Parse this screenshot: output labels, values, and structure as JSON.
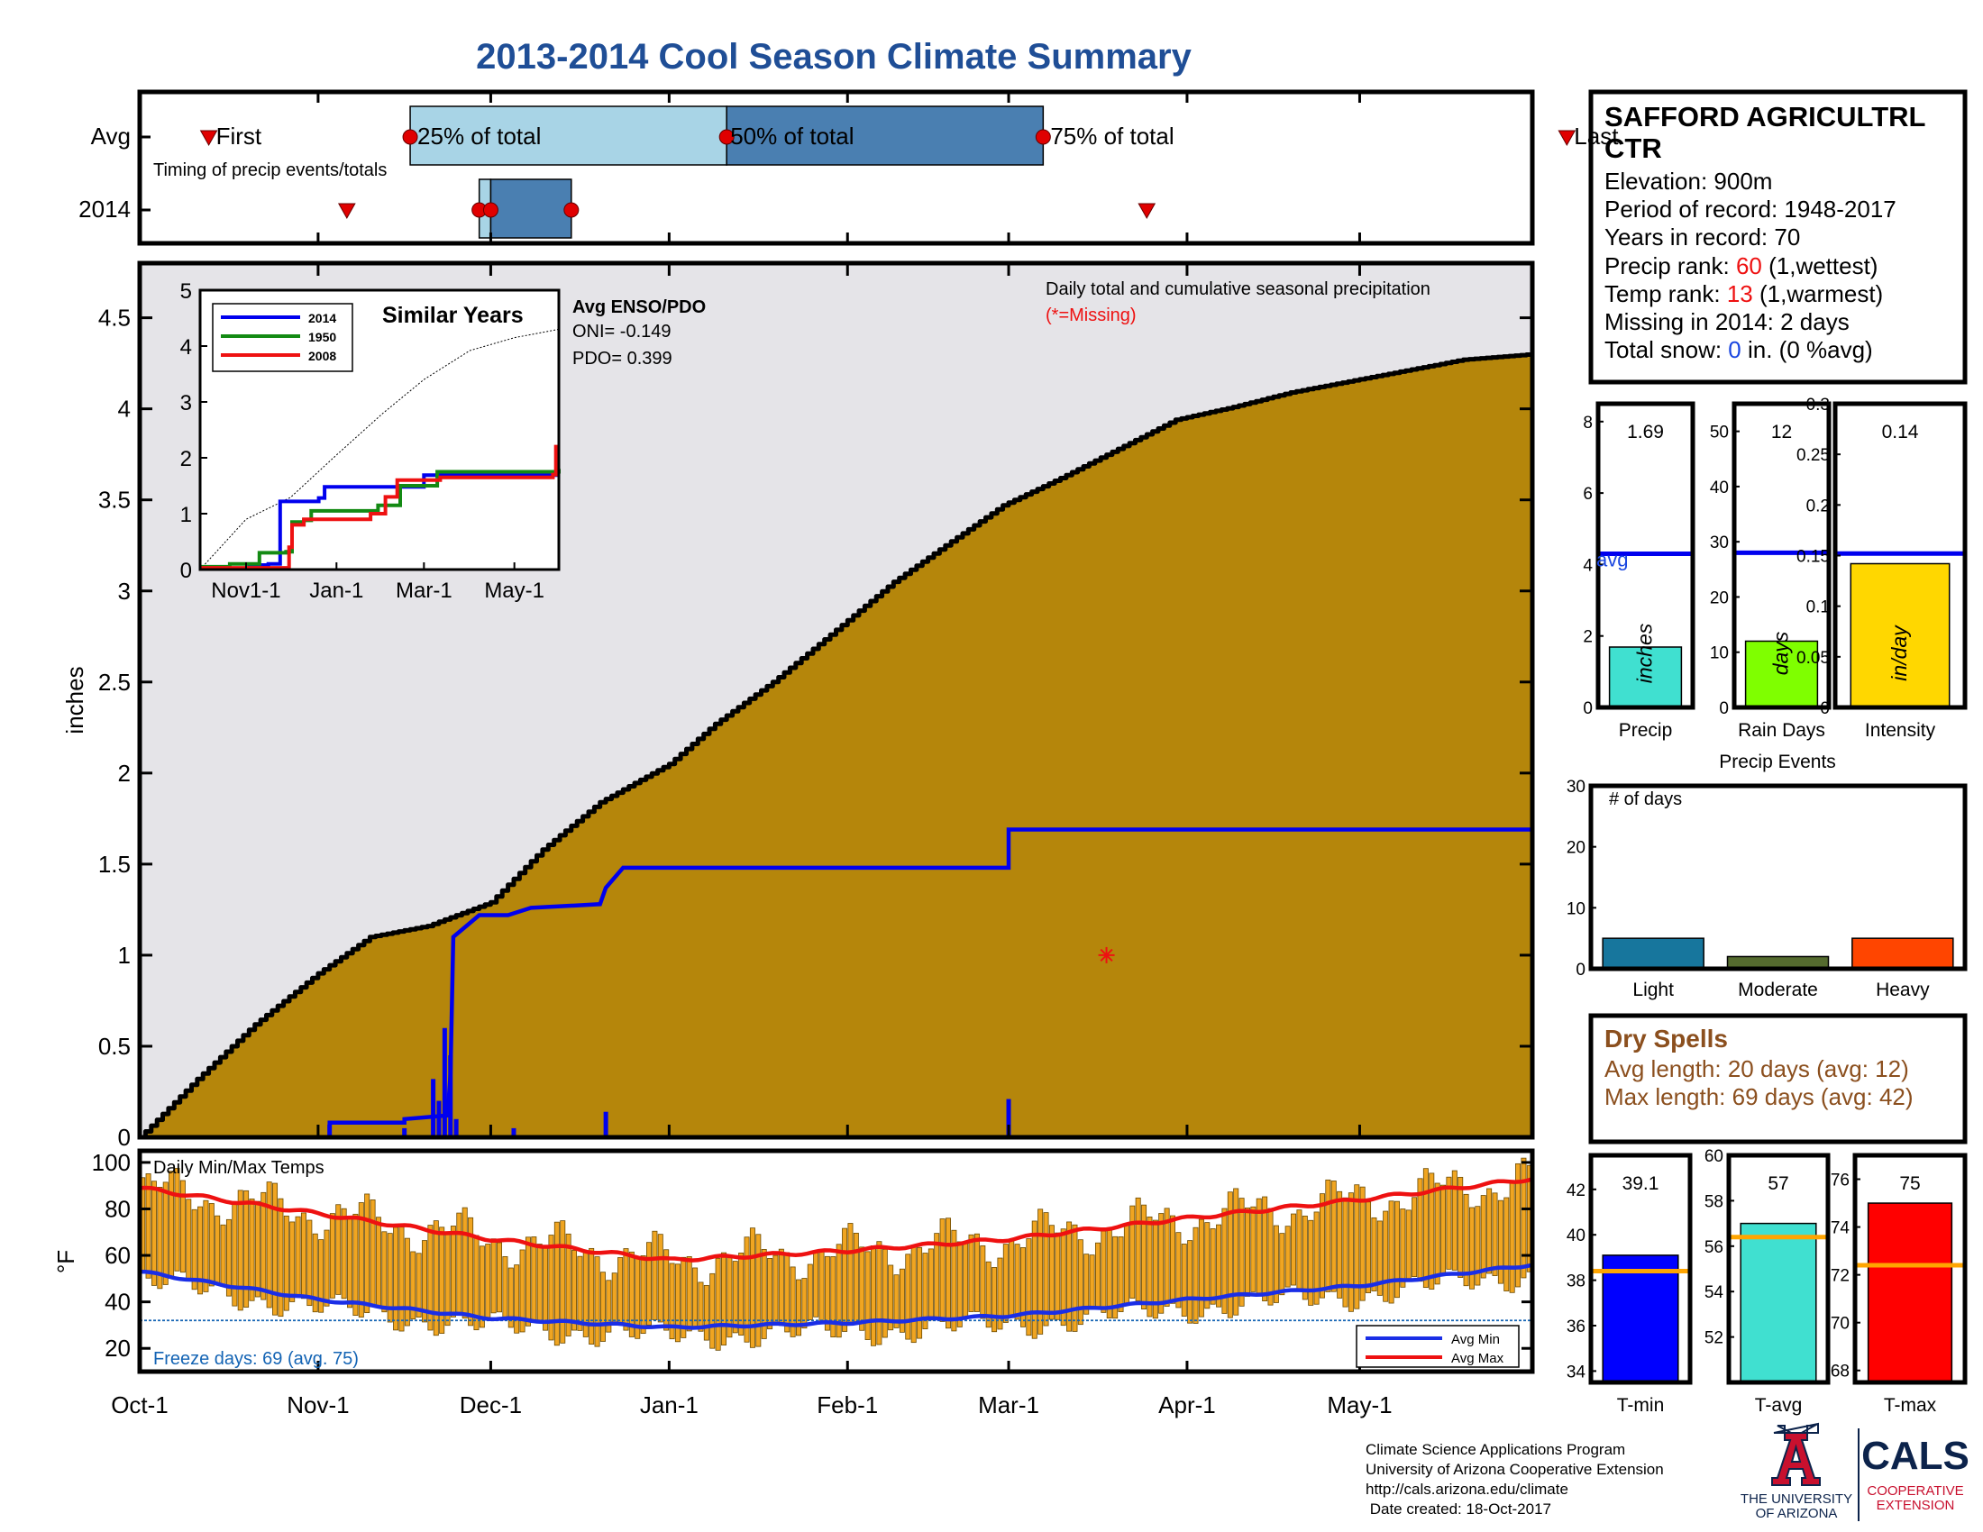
{
  "title": "2013-2014 Cool Season Climate Summary",
  "colors": {
    "title": "#1f4e96",
    "precip_fill": "#b5860b",
    "precip_bg": "#e5e4e8",
    "line_2014": "#0000ee",
    "line_1950": "#138a13",
    "line_2008": "#ee1111",
    "timing_light": "#a8d4e6",
    "timing_dark": "#4a7fb1",
    "temp_bar": "#f0a521",
    "avg_max": "#ee1111",
    "avg_min": "#1a2ee6",
    "red_text": "#ee1111",
    "blue_text": "#1a46e0",
    "dry_spell": "#8b4f1e",
    "precip_bar": "#40e0d0",
    "raindays_bar": "#7fff00",
    "intensity_bar": "#ffd700",
    "light_bar": "#17769d",
    "moderate_bar": "#556b2f",
    "heavy_bar": "#ff4500",
    "tmin_bar": "#0000ff",
    "tavg_bar": "#40e0d0",
    "tmax_bar": "#ff0000",
    "avg_marker": "#ffa500",
    "az_red": "#c8102e",
    "az_navy": "#0c234b"
  },
  "timing": {
    "row_labels": [
      "Avg",
      "2014"
    ],
    "caption": "Timing of precip events/totals",
    "avg_labels": {
      "first": "First",
      "q25": "25% of total",
      "q50": "50% of total",
      "q75": "75% of total",
      "last": "Last"
    },
    "avg_days": {
      "first": 12,
      "q25": 47,
      "q50": 102,
      "q75": 157,
      "last": 248
    },
    "y2014_days": {
      "first": 36,
      "q25": 59,
      "q50": 61,
      "q75": 75,
      "last": 175
    }
  },
  "chart_data": {
    "type": "area",
    "title": "Daily total and cumulative seasonal precipitation",
    "subtitle": "(*=Missing)",
    "ylabel": "inches",
    "ylim": [
      0,
      4.8
    ],
    "yticks": [
      "0",
      "0.5",
      "1",
      "1.5",
      "2",
      "2.5",
      "3",
      "3.5",
      "4",
      "4.5"
    ],
    "x_tick_labels": [
      "Oct-1",
      "Nov-1",
      "Dec-1",
      "Jan-1",
      "Feb-1",
      "Mar-1",
      "Apr-1",
      "May-1"
    ],
    "x_tick_days": [
      0,
      31,
      61,
      92,
      123,
      151,
      182,
      212
    ],
    "days_in_season": 242,
    "avg_cumulative": {
      "days": [
        0,
        10,
        20,
        31,
        40,
        50,
        61,
        70,
        80,
        92,
        100,
        110,
        120,
        131,
        140,
        150,
        160,
        170,
        180,
        190,
        200,
        210,
        220,
        230,
        242
      ],
      "values": [
        0,
        0.32,
        0.62,
        0.9,
        1.1,
        1.16,
        1.29,
        1.58,
        1.84,
        2.05,
        2.27,
        2.5,
        2.76,
        3.05,
        3.25,
        3.47,
        3.62,
        3.78,
        3.94,
        4.01,
        4.09,
        4.15,
        4.21,
        4.27,
        4.3
      ]
    },
    "cumulative_2014": {
      "days": [
        0,
        33,
        33,
        46,
        46,
        53.5,
        54,
        54.5,
        59,
        64,
        68,
        80,
        81,
        84,
        151,
        151,
        242
      ],
      "values": [
        0,
        0,
        0.08,
        0.08,
        0.1,
        0.12,
        0.35,
        1.1,
        1.22,
        1.22,
        1.26,
        1.28,
        1.37,
        1.48,
        1.48,
        1.69,
        1.69
      ]
    },
    "daily_2014": {
      "days": [
        33,
        46,
        51,
        52,
        53,
        54,
        55,
        65,
        81,
        151
      ],
      "values": [
        0.07,
        0.05,
        0.32,
        0.2,
        0.6,
        0.45,
        0.1,
        0.05,
        0.14,
        0.21
      ]
    },
    "missing_markers": [
      {
        "day": 168,
        "value": 1.0
      }
    ],
    "enso": {
      "heading": "Avg ENSO/PDO",
      "oni": "ONI= -0.149",
      "pdo": "PDO= 0.399"
    }
  },
  "inset": {
    "title": "Similar Years",
    "yticks": [
      "0",
      "1",
      "2",
      "3",
      "4",
      "5"
    ],
    "x_tick_labels": [
      "Nov1-1",
      "Jan-1",
      "Mar-1",
      "May-1"
    ],
    "x_tick_days": [
      31,
      92,
      151,
      212
    ],
    "legend": [
      "2014",
      "1950",
      "2008"
    ],
    "avg": {
      "days": [
        0,
        31,
        61,
        92,
        123,
        151,
        182,
        212,
        242
      ],
      "values": [
        0,
        0.9,
        1.29,
        2.05,
        2.79,
        3.4,
        3.92,
        4.15,
        4.3
      ]
    },
    "series": [
      {
        "name": "2014",
        "days": [
          0,
          33,
          46,
          54,
          59,
          80,
          84,
          151,
          242
        ],
        "values": [
          0.02,
          0.08,
          0.1,
          1.22,
          1.22,
          1.28,
          1.48,
          1.69,
          1.69
        ]
      },
      {
        "name": "1950",
        "days": [
          0,
          20,
          40,
          58,
          62,
          70,
          75,
          120,
          135,
          155,
          160,
          242
        ],
        "values": [
          0.05,
          0.1,
          0.3,
          0.32,
          0.85,
          0.88,
          1.05,
          1.15,
          1.5,
          1.5,
          1.75,
          1.8
        ]
      },
      {
        "name": "2008",
        "days": [
          0,
          48,
          60,
          62,
          70,
          80,
          115,
          125,
          133,
          150,
          162,
          200,
          238,
          240,
          242
        ],
        "values": [
          0.03,
          0.03,
          0.4,
          0.8,
          0.9,
          0.9,
          1.0,
          1.3,
          1.6,
          1.6,
          1.65,
          1.65,
          1.7,
          2.2,
          2.2
        ]
      }
    ]
  },
  "temps": {
    "title": "Daily Min/Max Temps",
    "ylabel": "°F",
    "ylim": [
      10,
      105
    ],
    "yticks": [
      "20",
      "40",
      "60",
      "80",
      "100"
    ],
    "freeze_label": "Freeze days: 69 (avg. 75)",
    "freeze_line": 32,
    "legend": [
      "Avg Min",
      "Avg Max"
    ],
    "avg_max": {
      "days": [
        0,
        31,
        61,
        92,
        123,
        151,
        182,
        212,
        242
      ],
      "values": [
        89,
        78,
        67,
        58,
        62,
        67,
        76,
        84,
        93
      ]
    },
    "avg_min": {
      "days": [
        0,
        31,
        61,
        92,
        123,
        151,
        182,
        212,
        242
      ],
      "values": [
        53,
        41,
        33,
        29,
        31,
        34,
        41,
        47,
        56
      ]
    }
  },
  "station": {
    "name_lines": [
      "SAFFORD AGRICULTRL",
      "CTR"
    ],
    "elevation": "Elevation: 900m",
    "period": "Period of record: 1948-2017",
    "years": "Years in record: 70",
    "precip_rank": {
      "pre": "Precip rank: ",
      "rank": "60",
      "post": " (1,wettest)"
    },
    "temp_rank": {
      "pre": "Temp rank: ",
      "rank": "13",
      "post": " (1,warmest)"
    },
    "missing": "Missing in 2014: 2 days",
    "snow": {
      "pre": "Total snow: ",
      "value": "0",
      "post": " in. (0 %avg)"
    }
  },
  "mini_precip": [
    {
      "label": "Precip",
      "unit": "inches",
      "value": 1.69,
      "value_text": "1.69",
      "avg": 4.3,
      "ylim": [
        0,
        8.5
      ],
      "yticks": [
        0,
        2,
        4,
        6,
        8
      ],
      "ytick_text": [
        "0",
        "2",
        "4",
        "6",
        "8"
      ],
      "avg_label": "avg",
      "color": "precip_bar"
    },
    {
      "label": "Rain Days",
      "unit": "days",
      "value": 12,
      "value_text": "12",
      "avg": 28,
      "ylim": [
        0,
        55
      ],
      "yticks": [
        0,
        10,
        20,
        30,
        40,
        50
      ],
      "ytick_text": [
        "0",
        "10",
        "20",
        "30",
        "40",
        "50"
      ],
      "avg_label": "",
      "color": "raindays_bar"
    },
    {
      "label": "Intensity",
      "unit": "in/day",
      "value": 0.142,
      "value_text": "0.14",
      "avg": 0.152,
      "ylim": [
        0,
        0.3
      ],
      "yticks": [
        0,
        0.05,
        0.1,
        0.15,
        0.2,
        0.25,
        0.3
      ],
      "ytick_text": [
        "0",
        "0.05",
        "0.1",
        "0.15",
        "0.2",
        "0.25",
        "0.3"
      ],
      "avg_label": "",
      "color": "intensity_bar"
    }
  ],
  "events": {
    "title": "Precip Events",
    "ylabel": "# of days",
    "ylim": [
      0,
      30
    ],
    "yticks": [
      "0",
      "10",
      "20",
      "30"
    ],
    "categories": [
      "Light",
      "Moderate",
      "Heavy"
    ],
    "values": [
      5,
      2,
      5
    ]
  },
  "dry_spells": {
    "title": "Dry Spells",
    "avg_length": "Avg length: 20 days (avg: 12)",
    "max_length": "Max length: 69 days (avg: 42)"
  },
  "mini_temp": [
    {
      "label": "T-min",
      "value": 39.1,
      "value_text": "39.1",
      "avg": 38.4,
      "ylim": [
        33.5,
        43.5
      ],
      "yticks": [
        34,
        36,
        38,
        40,
        42
      ],
      "color": "tmin_bar"
    },
    {
      "label": "T-avg",
      "value": 57,
      "value_text": "57",
      "avg": 56.4,
      "ylim": [
        50,
        60
      ],
      "yticks": [
        52,
        54,
        56,
        58,
        60
      ],
      "color": "tavg_bar"
    },
    {
      "label": "T-max",
      "value": 75,
      "value_text": "75",
      "avg": 72.4,
      "ylim": [
        67.5,
        77
      ],
      "yticks": [
        68,
        70,
        72,
        74,
        76
      ],
      "color": "tmax_bar"
    }
  ],
  "footer": {
    "lines": [
      "Climate Science Applications Program",
      "University of Arizona Cooperative Extension",
      "http://cals.arizona.edu/climate",
      " Date created: 18-Oct-2017"
    ],
    "ua_line1": "THE UNIVERSITY",
    "ua_line2": "OF ARIZONA",
    "cals": "CALS",
    "coop1": "COOPERATIVE",
    "coop2": "EXTENSION"
  }
}
